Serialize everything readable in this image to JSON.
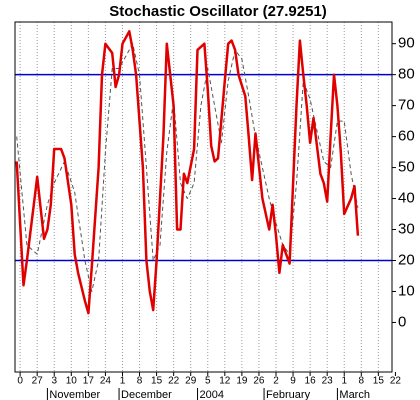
{
  "chart_data": {
    "type": "line",
    "title": "Stochastic Oscillator (27.9251)",
    "xlim": [
      -1.5,
      109
    ],
    "ylim": [
      -16,
      97
    ],
    "xticks": [
      {
        "value": 0,
        "label": "0"
      },
      {
        "value": 5,
        "label": "27"
      },
      {
        "value": 10,
        "label": "3"
      },
      {
        "value": 15,
        "label": "10"
      },
      {
        "value": 20,
        "label": "17"
      },
      {
        "value": 25,
        "label": "24"
      },
      {
        "value": 30,
        "label": "1"
      },
      {
        "value": 35,
        "label": "8"
      },
      {
        "value": 40,
        "label": "15"
      },
      {
        "value": 45,
        "label": "22"
      },
      {
        "value": 50,
        "label": "29"
      },
      {
        "value": 55,
        "label": "5"
      },
      {
        "value": 60,
        "label": "12"
      },
      {
        "value": 65,
        "label": "19"
      },
      {
        "value": 70,
        "label": "26"
      },
      {
        "value": 75,
        "label": "2"
      },
      {
        "value": 80,
        "label": "9"
      },
      {
        "value": 85,
        "label": "16"
      },
      {
        "value": 90,
        "label": "23"
      },
      {
        "value": 95,
        "label": "1"
      },
      {
        "value": 100,
        "label": "8"
      },
      {
        "value": 105,
        "label": "15"
      },
      {
        "value": 110,
        "label": "22"
      }
    ],
    "month_labels": [
      {
        "value": 8,
        "label": "November"
      },
      {
        "value": 29,
        "label": "December"
      },
      {
        "value": 52,
        "label": "2004"
      },
      {
        "value": 71.5,
        "label": "February"
      },
      {
        "value": 93,
        "label": "March"
      }
    ],
    "yticks": [
      0,
      10,
      20,
      30,
      40,
      50,
      60,
      70,
      80,
      90
    ],
    "reference_lines": [
      80,
      20
    ],
    "reference_color": "#0000cc",
    "grid": true,
    "series": [
      {
        "color": "#e00000",
        "style": "solid",
        "x": [
          -1,
          1,
          2,
          4,
          5,
          7,
          8,
          9,
          10,
          12,
          13,
          15,
          16,
          17,
          19,
          20,
          21,
          23,
          24,
          25,
          27,
          28,
          29,
          30,
          32,
          33,
          34,
          36,
          37,
          38,
          39,
          40,
          42,
          43,
          45,
          46,
          47,
          48,
          49,
          51,
          52,
          54,
          55,
          56,
          57,
          58,
          60,
          61,
          62,
          63,
          64,
          66,
          67,
          68,
          69,
          71,
          72,
          73,
          74,
          75,
          76,
          77,
          79,
          80,
          81,
          82,
          83,
          84,
          85,
          86,
          88,
          89,
          90,
          91,
          92,
          93,
          94,
          95,
          97,
          98,
          99
        ],
        "values": [
          52,
          12,
          20,
          38,
          47,
          27,
          30,
          38,
          56,
          56,
          53,
          38,
          22,
          16,
          7,
          3,
          18,
          50,
          80,
          90,
          87,
          76,
          80,
          90,
          94,
          88,
          80,
          50,
          20,
          10,
          4,
          20,
          60,
          90,
          70,
          30,
          30,
          48,
          45,
          56,
          88,
          90,
          75,
          57,
          52,
          53,
          78,
          90,
          91,
          88,
          80,
          73,
          60,
          46,
          61,
          40,
          35,
          30,
          38,
          28,
          16,
          25,
          19,
          45,
          70,
          91,
          80,
          70,
          58,
          66,
          48,
          45,
          39,
          60,
          80,
          70,
          55,
          35,
          40,
          44,
          28
        ]
      },
      {
        "color": "#555555",
        "style": "dashed",
        "x": [
          -1,
          2,
          5,
          8,
          10,
          13,
          16,
          19,
          21,
          23,
          25,
          27,
          29,
          31,
          33,
          35,
          37,
          39,
          41,
          43,
          45,
          47,
          49,
          51,
          53,
          55,
          57,
          59,
          61,
          63,
          65,
          67,
          69,
          71,
          73,
          75,
          77,
          79,
          81,
          83,
          85,
          87,
          89,
          91,
          93,
          95,
          97,
          99
        ],
        "values": [
          60,
          25,
          22,
          38,
          45,
          52,
          42,
          20,
          10,
          20,
          55,
          82,
          82,
          86,
          90,
          80,
          50,
          20,
          25,
          55,
          72,
          45,
          40,
          45,
          70,
          82,
          70,
          58,
          78,
          88,
          85,
          73,
          60,
          50,
          40,
          32,
          25,
          22,
          45,
          78,
          72,
          62,
          52,
          50,
          65,
          65,
          48,
          37
        ]
      }
    ]
  }
}
